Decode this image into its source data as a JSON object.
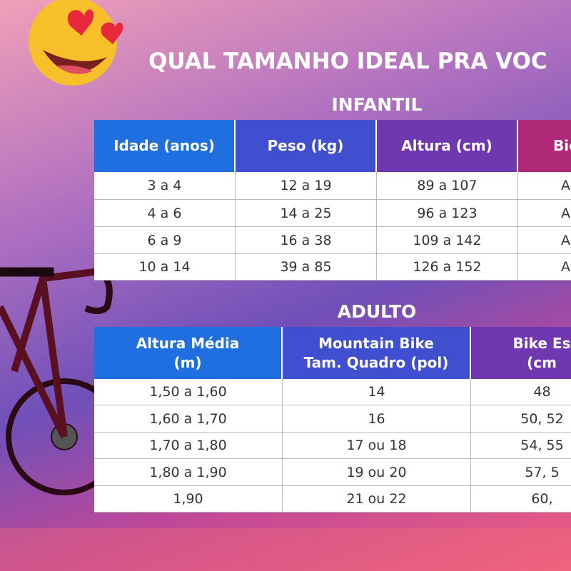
{
  "title": "QUAL TAMANHO IDEAL PRA VOC",
  "infantil": {
    "heading": "INFANTIL",
    "headers": [
      [
        "Idade (anos)"
      ],
      [
        "Peso (kg)"
      ],
      [
        "Altura (cm)"
      ],
      [
        "Bic"
      ]
    ],
    "rows": [
      [
        "3 a 4",
        "12 a 19",
        "89 a 107",
        "A"
      ],
      [
        "4 a 6",
        "14 a 25",
        "96 a 123",
        "A"
      ],
      [
        "6 a 9",
        "16 a 38",
        "109 a 142",
        "A"
      ],
      [
        "10 a 14",
        "39 a 85",
        "126 a 152",
        "A"
      ]
    ]
  },
  "adulto": {
    "heading": "ADULTO",
    "headers": [
      [
        "Altura Média",
        "(m)"
      ],
      [
        "Mountain Bike",
        "Tam. Quadro (pol)"
      ],
      [
        "Bike Es",
        "(cm"
      ]
    ],
    "rows": [
      [
        "1,50 a 1,60",
        "14",
        "48"
      ],
      [
        "1,60 a 1,70",
        "16",
        "50, 52"
      ],
      [
        "1,70 a 1,80",
        "17 ou 18",
        "54, 55"
      ],
      [
        "1,80 a 1,90",
        "19 ou 20",
        "57, 5"
      ],
      [
        "1,90",
        "21 ou 22",
        "60,"
      ]
    ]
  }
}
